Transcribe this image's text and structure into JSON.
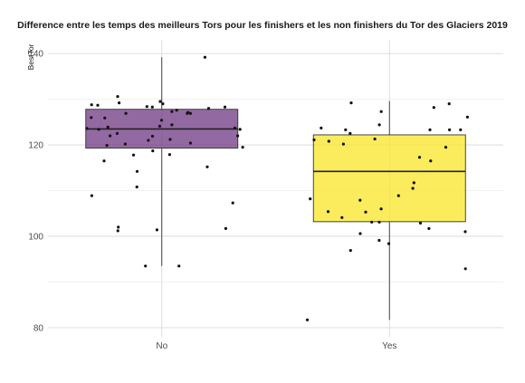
{
  "chart_data": {
    "type": "box",
    "title": "Difference entre les temps des meilleurs Tors pour les finishers et les non finishers du Tor des Glaciers 2019",
    "xlabel": "",
    "ylabel": "BestTor",
    "ylim": [
      78,
      143
    ],
    "y_ticks": [
      80,
      100,
      120,
      140
    ],
    "grid": true,
    "categories": [
      "No",
      "Yes"
    ],
    "colors": {
      "No": "#6a2f7e",
      "Yes": "#f9e41e"
    },
    "box_stats": [
      {
        "category": "No",
        "min": 93.5,
        "q1": 119.3,
        "median": 123.5,
        "q3": 127.8,
        "max": 139.2
      },
      {
        "category": "Yes",
        "min": 81.7,
        "q1": 103.2,
        "median": 114.2,
        "q3": 122.2,
        "max": 129.6
      }
    ],
    "points": [
      {
        "category": "No",
        "values": [
          129.5,
          127.3,
          128.7,
          129.2,
          128.3,
          129.0,
          128.8,
          128.3,
          127.6,
          128.4,
          126.9,
          128.0,
          127.1,
          126.0,
          125.4,
          130.6,
          126.9,
          125.9,
          124.4,
          124.1,
          123.9,
          123.6,
          123.7,
          123.4,
          123.4,
          121.9,
          122.0,
          122.0,
          121.0,
          121.2,
          120.4,
          120.2,
          119.9,
          119.5,
          118.7,
          122.5,
          117.9,
          117.8,
          116.5,
          115.2,
          114.2,
          110.8,
          108.9,
          107.3,
          102.0,
          101.7,
          101.4,
          101.2,
          93.5,
          93.5,
          139.2,
          126.9
        ]
      },
      {
        "category": "Yes",
        "values": [
          120.8,
          120.2,
          106.0,
          123.7,
          121.1,
          121.3,
          117.3,
          111.7,
          101.0,
          100.6,
          99.1,
          98.4,
          103.1,
          119.5,
          127.3,
          124.4,
          122.5,
          123.3,
          123.3,
          105.4,
          129.2,
          128.2,
          129.0,
          126.1,
          123.3,
          123.3,
          116.5,
          110.5,
          108.9,
          108.2,
          107.9,
          105.3,
          104.1,
          103.1,
          102.9,
          101.7,
          96.9,
          92.9,
          81.7
        ]
      }
    ]
  }
}
